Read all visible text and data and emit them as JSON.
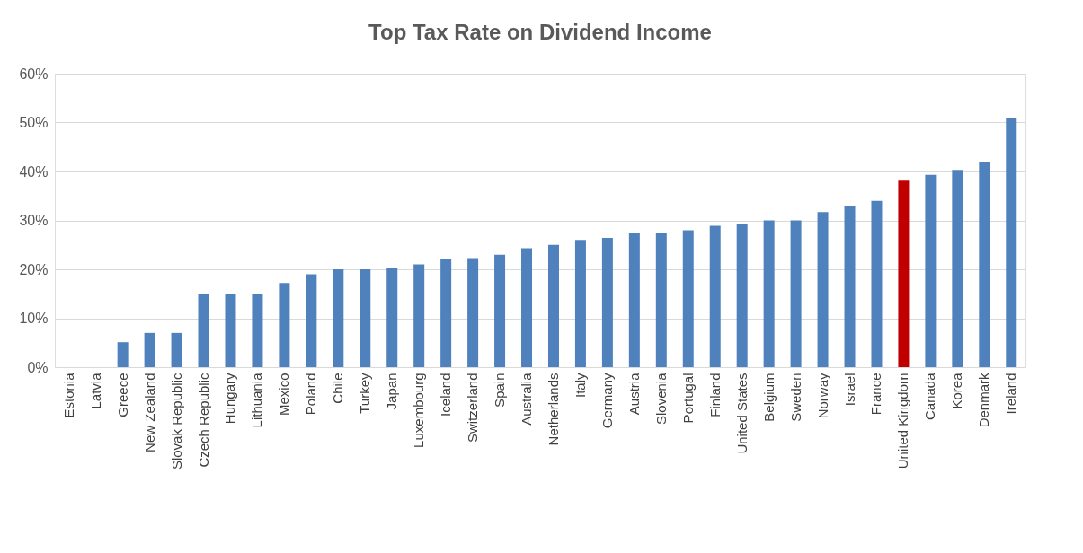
{
  "chart_data": {
    "type": "bar",
    "title": "Top Tax Rate on Dividend Income",
    "categories": [
      "Estonia",
      "Latvia",
      "Greece",
      "New Zealand",
      "Slovak Republic",
      "Czech Republic",
      "Hungary",
      "Lithuania",
      "Mexico",
      "Poland",
      "Chile",
      "Turkey",
      "Japan",
      "Luxembourg",
      "Iceland",
      "Switzerland",
      "Spain",
      "Australia",
      "Netherlands",
      "Italy",
      "Germany",
      "Austria",
      "Slovenia",
      "Portugal",
      "Finland",
      "United States",
      "Belgium",
      "Sweden",
      "Norway",
      "Israel",
      "France",
      "United Kingdom",
      "Canada",
      "Korea",
      "Denmark",
      "Ireland"
    ],
    "values": [
      0,
      0,
      5.1,
      7,
      7,
      15,
      15,
      15,
      17.2,
      19,
      20,
      20,
      20.3,
      21,
      22,
      22.3,
      23,
      24.3,
      25,
      26,
      26.4,
      27.5,
      27.5,
      28,
      28.9,
      29.2,
      30,
      30,
      31.7,
      33,
      34,
      38.1,
      39.3,
      40.3,
      42,
      51
    ],
    "colors": [
      "#4f81bd",
      "#4f81bd",
      "#4f81bd",
      "#4f81bd",
      "#4f81bd",
      "#4f81bd",
      "#4f81bd",
      "#4f81bd",
      "#4f81bd",
      "#4f81bd",
      "#4f81bd",
      "#4f81bd",
      "#4f81bd",
      "#4f81bd",
      "#4f81bd",
      "#4f81bd",
      "#4f81bd",
      "#4f81bd",
      "#4f81bd",
      "#4f81bd",
      "#4f81bd",
      "#4f81bd",
      "#4f81bd",
      "#4f81bd",
      "#4f81bd",
      "#4f81bd",
      "#4f81bd",
      "#4f81bd",
      "#4f81bd",
      "#4f81bd",
      "#4f81bd",
      "#c00000",
      "#4f81bd",
      "#4f81bd",
      "#4f81bd",
      "#4f81bd"
    ],
    "ylim": [
      0,
      60
    ],
    "yticks": [
      {
        "value": 0,
        "label": "0%"
      },
      {
        "value": 10,
        "label": "10%"
      },
      {
        "value": 20,
        "label": "20%"
      },
      {
        "value": 30,
        "label": "30%"
      },
      {
        "value": 40,
        "label": "40%"
      },
      {
        "value": 50,
        "label": "50%"
      },
      {
        "value": 60,
        "label": "60%"
      }
    ],
    "grid": "y",
    "legend": false
  }
}
